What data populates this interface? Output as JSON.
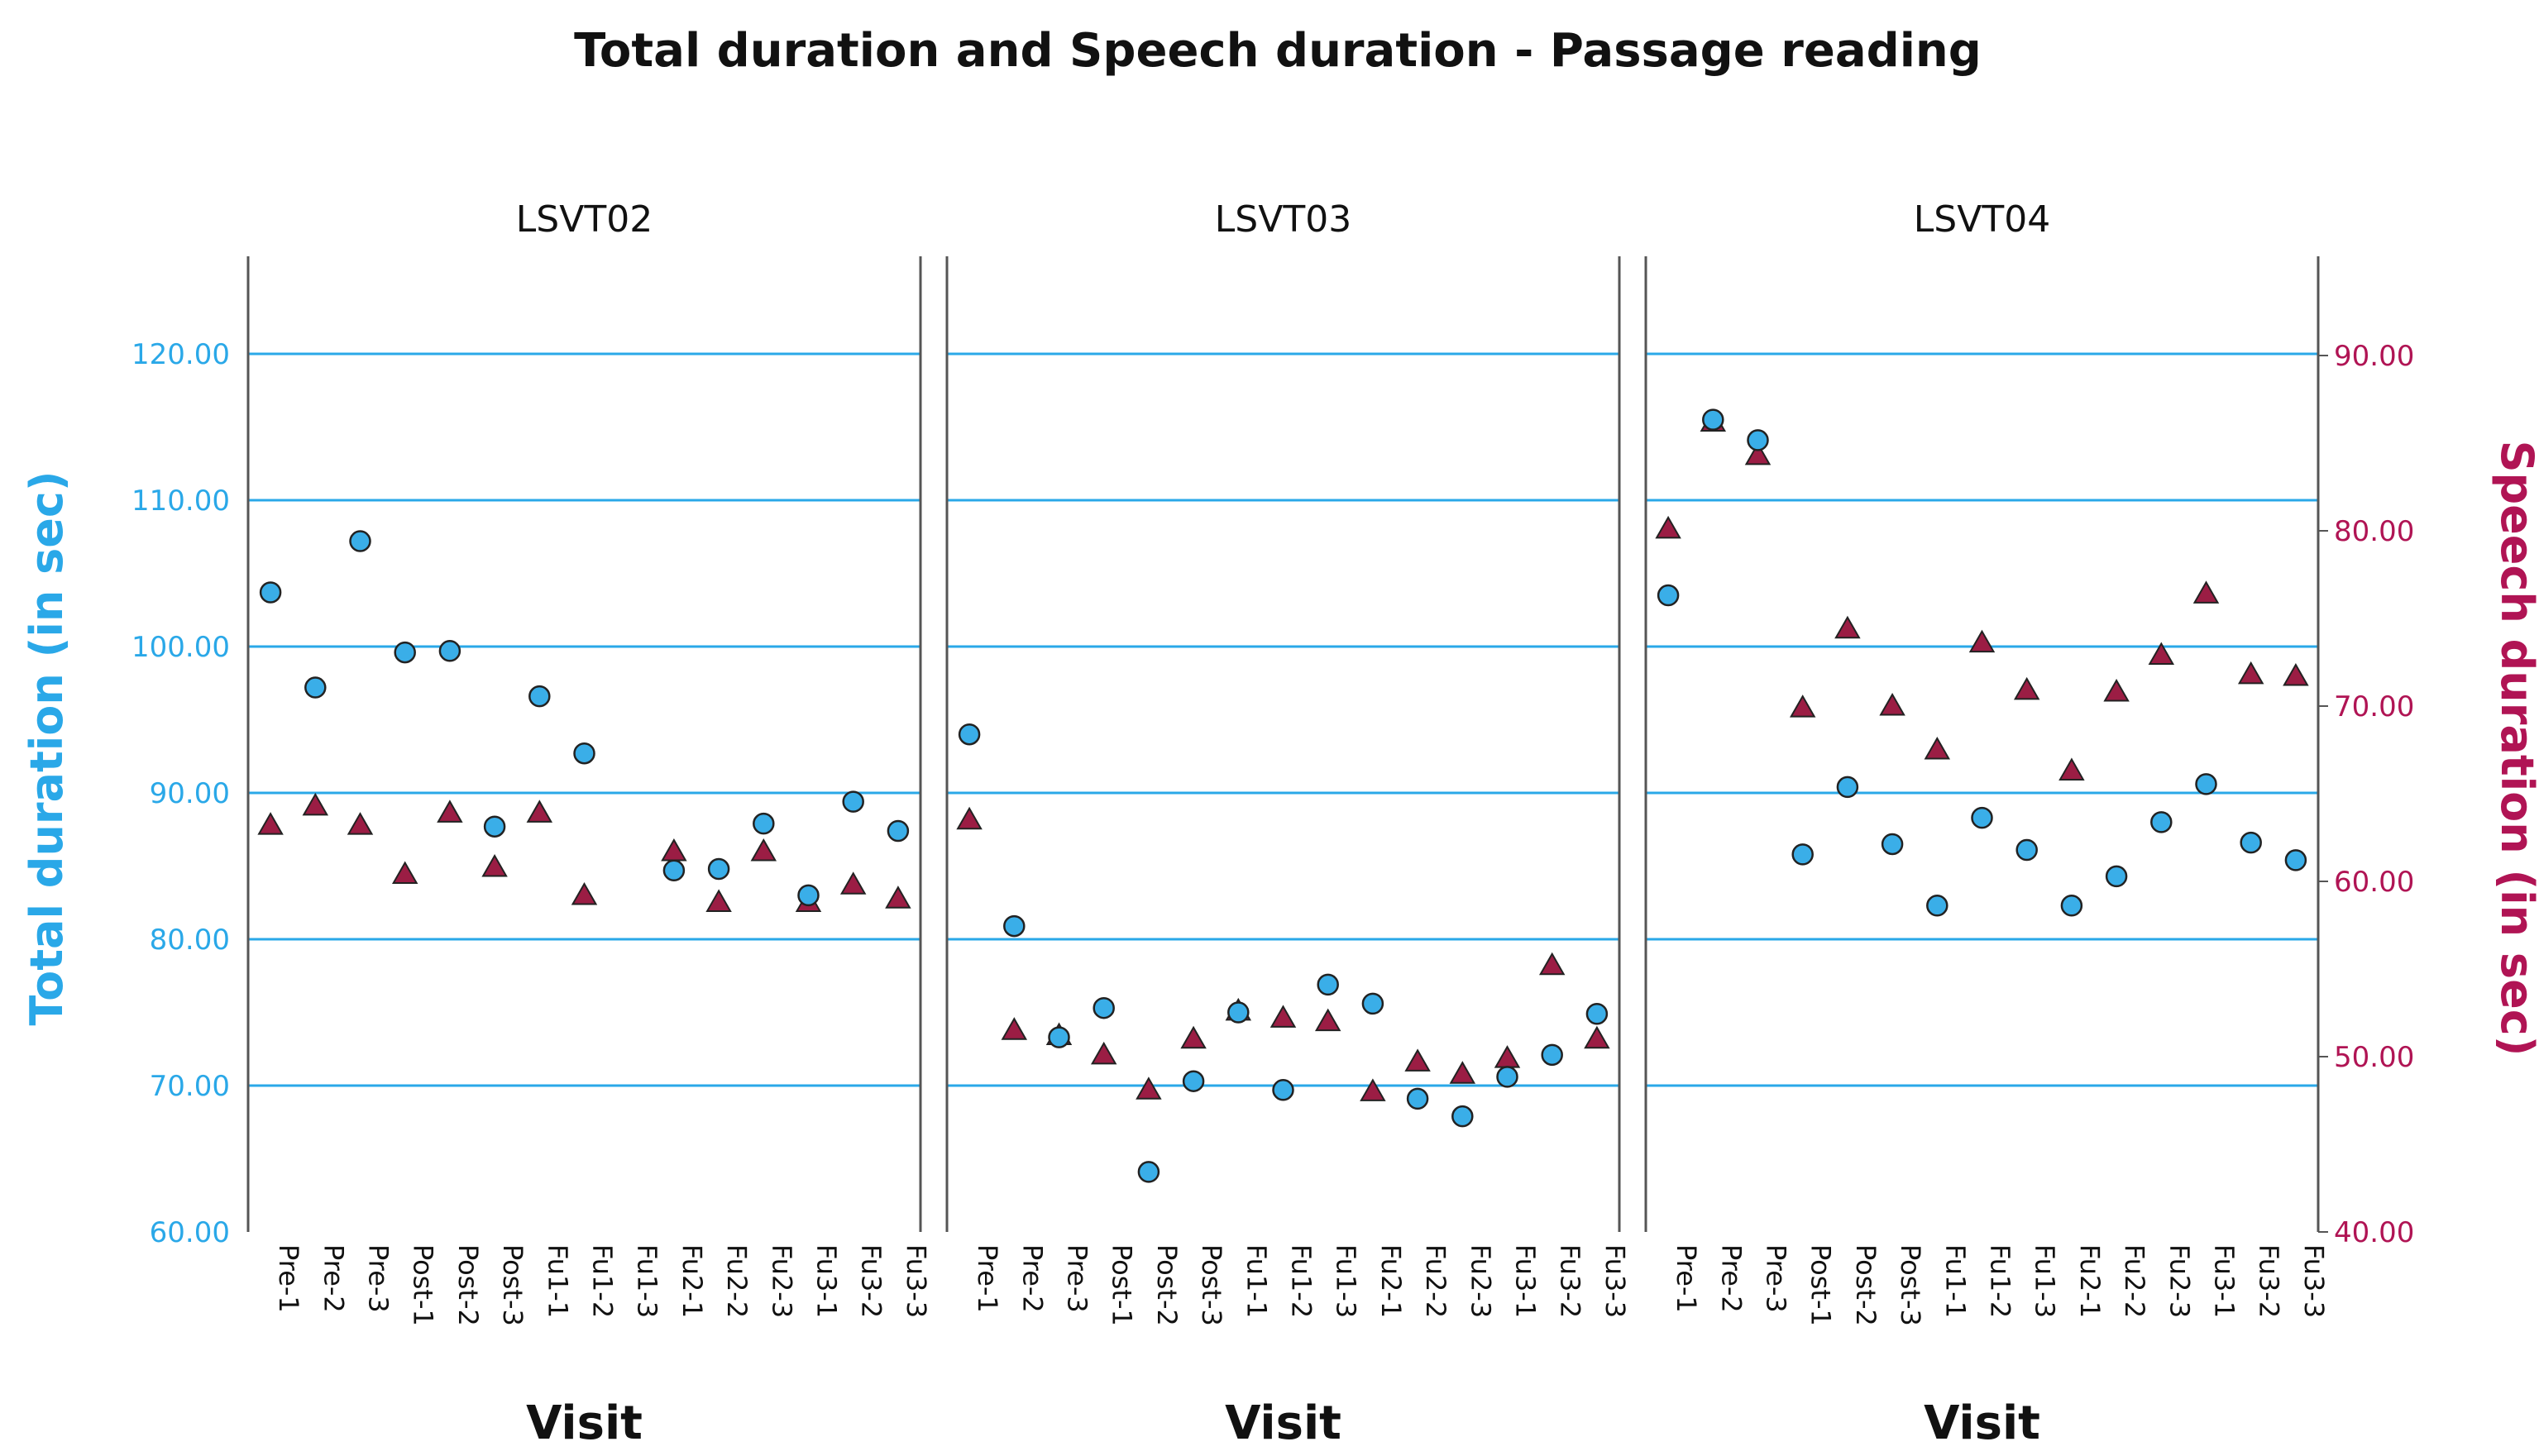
{
  "chart_data": {
    "type": "scatter",
    "title": "Total duration and Speech duration - Passage reading",
    "xlabel": "Visit",
    "ylabel_left": "Total duration (in sec)",
    "ylabel_right": "Speech duration (in sec)",
    "ylim_left": [
      60,
      125
    ],
    "ylim_right": [
      40,
      90
    ],
    "yticks_left": [
      "60.00",
      "70.00",
      "80.00",
      "90.00",
      "100.00",
      "110.00",
      "120.00"
    ],
    "yticks_right": [
      "40.00",
      "50.00",
      "60.00",
      "70.00",
      "80.00",
      "90.00"
    ],
    "grid": true,
    "colors": {
      "total": "#3aaee8",
      "speech": "#9b1d44",
      "grid": "#2aa8e8",
      "left_axis": "#2aa8e8",
      "right_axis": "#b01454"
    },
    "categories": [
      "Pre-1",
      "Pre-2",
      "Pre-3",
      "Post-1",
      "Post-2",
      "Post-3",
      "Fu1-1",
      "Fu1-2",
      "Fu1-3",
      "Fu2-1",
      "Fu2-2",
      "Fu2-3",
      "Fu3-1",
      "Fu3-2",
      "Fu3-3"
    ],
    "panels": [
      {
        "name": "LSVT02",
        "total": [
          103.7,
          97.2,
          107.2,
          99.6,
          99.7,
          87.7,
          96.6,
          92.7,
          null,
          84.7,
          84.8,
          87.9,
          83.0,
          89.4,
          87.4
        ],
        "speech": [
          63.2,
          64.3,
          63.2,
          60.4,
          63.9,
          60.8,
          63.9,
          59.2,
          null,
          61.7,
          58.8,
          61.7,
          58.8,
          59.8,
          59.0
        ]
      },
      {
        "name": "LSVT03",
        "total": [
          94.0,
          80.9,
          73.3,
          75.3,
          64.1,
          70.3,
          75.0,
          69.7,
          76.9,
          75.6,
          69.1,
          67.9,
          70.6,
          72.1,
          74.9
        ],
        "speech": [
          63.5,
          51.5,
          51.2,
          50.1,
          48.1,
          51.0,
          52.6,
          52.2,
          52.0,
          48.0,
          49.7,
          49.0,
          49.9,
          55.2,
          51.0
        ]
      },
      {
        "name": "LSVT04",
        "total": [
          103.5,
          115.5,
          114.1,
          85.8,
          90.4,
          86.5,
          82.3,
          88.3,
          86.1,
          82.3,
          84.3,
          88.0,
          90.6,
          86.6,
          85.4
        ],
        "speech": [
          80.1,
          86.2,
          84.3,
          69.9,
          74.4,
          70.0,
          67.5,
          73.6,
          70.9,
          66.3,
          70.8,
          72.9,
          76.4,
          71.8,
          71.7
        ]
      }
    ]
  }
}
